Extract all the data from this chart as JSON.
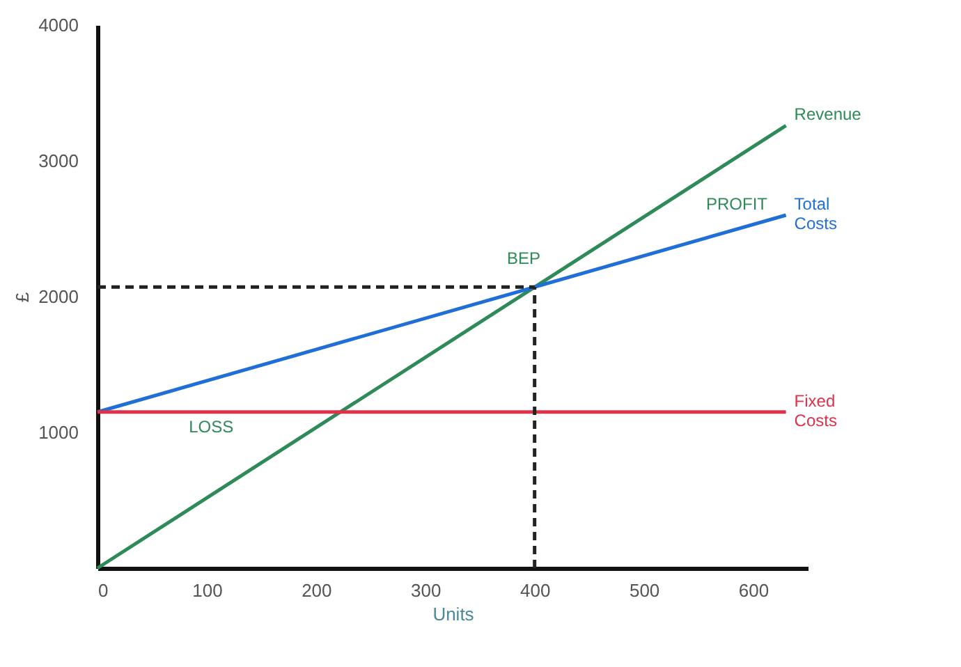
{
  "chart_data": {
    "type": "line",
    "xlabel": "Units",
    "ylabel": "£",
    "xlim": [
      0,
      650
    ],
    "ylim": [
      0,
      4000
    ],
    "xticks": [
      0,
      100,
      200,
      300,
      400,
      500,
      600
    ],
    "yticks": [
      1000,
      2000,
      3000,
      4000
    ],
    "grid": false,
    "legend": false,
    "marker": "none",
    "series": [
      {
        "name": "Revenue",
        "color": "#2e8b57",
        "x": [
          0,
          630
        ],
        "values": [
          0,
          3260
        ]
      },
      {
        "name": "Total Costs",
        "color": "#1f6fd6",
        "x": [
          0,
          630
        ],
        "values": [
          1150,
          2600
        ]
      },
      {
        "name": "Fixed Costs",
        "color": "#e0304a",
        "x": [
          0,
          630
        ],
        "values": [
          1150,
          1150
        ]
      },
      {
        "color": "#222222",
        "line_style": "dashed",
        "x": [
          0,
          400
        ],
        "values": [
          2070,
          2070
        ]
      },
      {
        "color": "#222222",
        "line_style": "dashed",
        "x": [
          400,
          400
        ],
        "values": [
          0,
          2070
        ]
      }
    ],
    "annotations": [
      "BEP",
      "PROFIT",
      "LOSS"
    ]
  }
}
